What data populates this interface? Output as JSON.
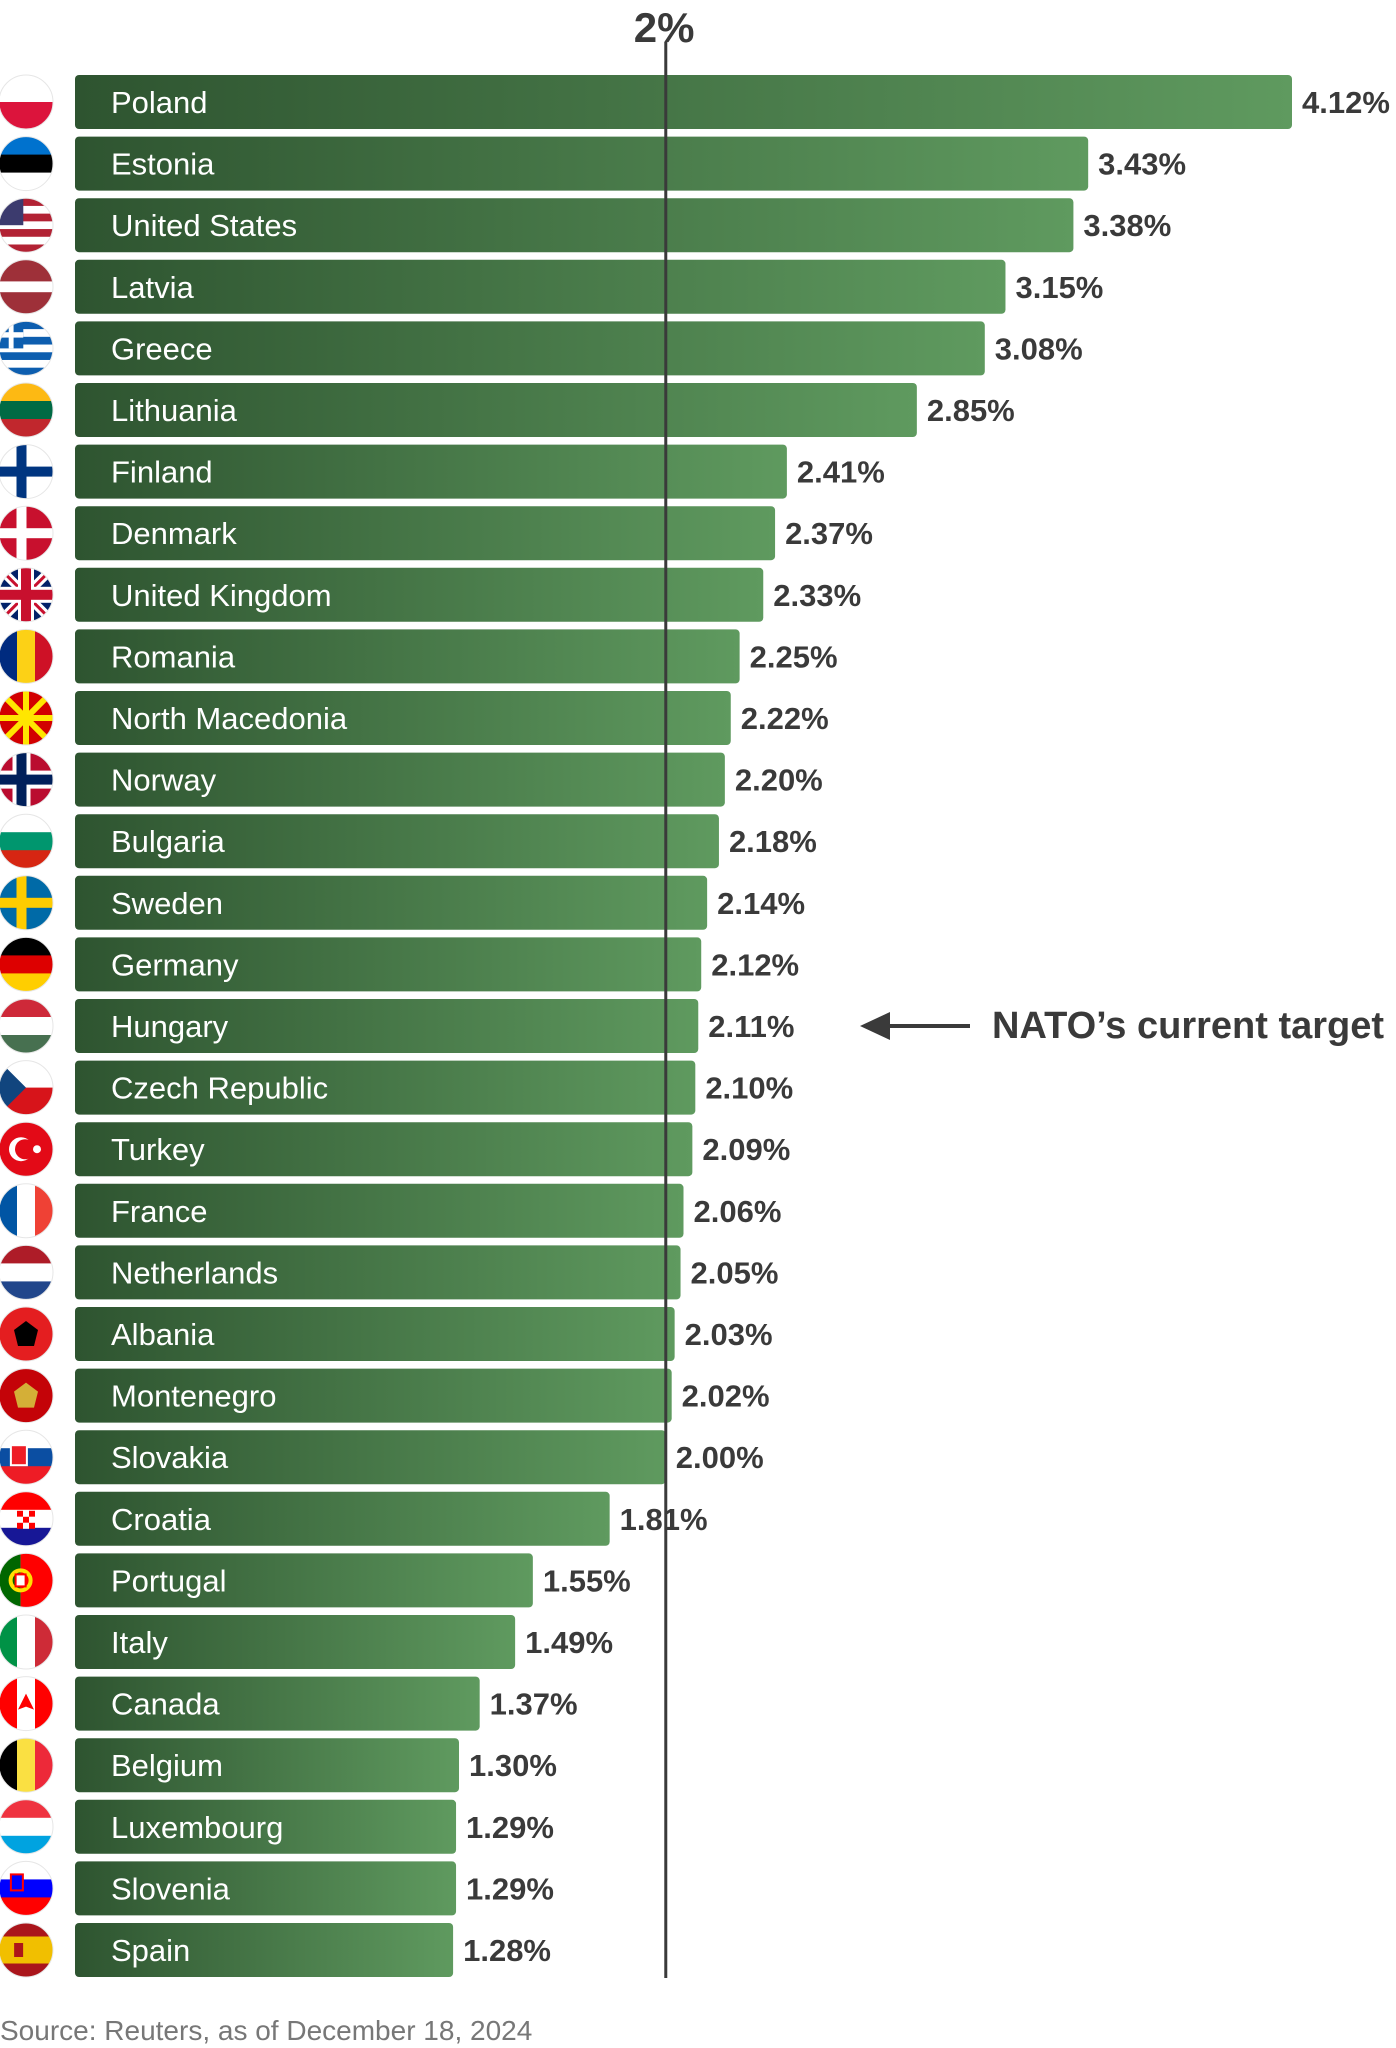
{
  "chart_data": {
    "type": "bar",
    "orientation": "horizontal",
    "categories": [
      "Poland",
      "Estonia",
      "United States",
      "Latvia",
      "Greece",
      "Lithuania",
      "Finland",
      "Denmark",
      "United Kingdom",
      "Romania",
      "North Macedonia",
      "Norway",
      "Bulgaria",
      "Sweden",
      "Germany",
      "Hungary",
      "Czech Republic",
      "Turkey",
      "France",
      "Netherlands",
      "Albania",
      "Montenegro",
      "Slovakia",
      "Croatia",
      "Portugal",
      "Italy",
      "Canada",
      "Belgium",
      "Luxembourg",
      "Slovenia",
      "Spain"
    ],
    "values": [
      4.12,
      3.43,
      3.38,
      3.15,
      3.08,
      2.85,
      2.41,
      2.37,
      2.33,
      2.25,
      2.22,
      2.2,
      2.18,
      2.14,
      2.12,
      2.11,
      2.1,
      2.09,
      2.06,
      2.05,
      2.03,
      2.02,
      2.0,
      1.81,
      1.55,
      1.49,
      1.37,
      1.3,
      1.29,
      1.29,
      1.28
    ],
    "value_labels": [
      "4.12%",
      "3.43%",
      "3.38%",
      "3.15%",
      "3.08%",
      "2.85%",
      "2.41%",
      "2.37%",
      "2.33%",
      "2.25%",
      "2.22%",
      "2.20%",
      "2.18%",
      "2.14%",
      "2.12%",
      "2.11%",
      "2.10%",
      "2.09%",
      "2.06%",
      "2.05%",
      "2.03%",
      "2.02%",
      "2.00%",
      "1.81%",
      "1.55%",
      "1.49%",
      "1.37%",
      "1.30%",
      "1.29%",
      "1.29%",
      "1.28%"
    ],
    "xlim": [
      0,
      4.12
    ],
    "reference_line": {
      "value": 2.0,
      "label": "2%"
    },
    "annotation": "NATO’s current target",
    "legend": "none",
    "grid": false,
    "colors": {
      "bar_start": "#2e5430",
      "bar_end": "#5f9a5f",
      "text_on_bar": "#ffffff",
      "value_text": "#3a3a3a",
      "ref_line": "#3a3a3a"
    },
    "flags": [
      "poland-flag-icon",
      "estonia-flag-icon",
      "united-states-flag-icon",
      "latvia-flag-icon",
      "greece-flag-icon",
      "lithuania-flag-icon",
      "finland-flag-icon",
      "denmark-flag-icon",
      "united-kingdom-flag-icon",
      "romania-flag-icon",
      "north-macedonia-flag-icon",
      "norway-flag-icon",
      "bulgaria-flag-icon",
      "sweden-flag-icon",
      "germany-flag-icon",
      "hungary-flag-icon",
      "czech-republic-flag-icon",
      "turkey-flag-icon",
      "france-flag-icon",
      "netherlands-flag-icon",
      "albania-flag-icon",
      "montenegro-flag-icon",
      "slovakia-flag-icon",
      "croatia-flag-icon",
      "portugal-flag-icon",
      "italy-flag-icon",
      "canada-flag-icon",
      "belgium-flag-icon",
      "luxembourg-flag-icon",
      "slovenia-flag-icon",
      "spain-flag-icon"
    ]
  },
  "source": "Source: Reuters, as of December 18, 2024"
}
